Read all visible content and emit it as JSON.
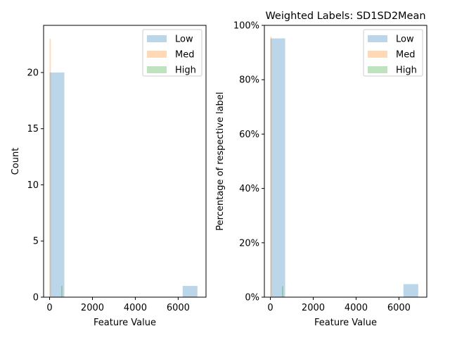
{
  "chart_data": [
    {
      "type": "histogram",
      "title": "",
      "xlabel": "Feature Value",
      "ylabel": "Count",
      "xlim": [
        -280,
        7300
      ],
      "ylim": [
        0,
        24.2
      ],
      "x_ticks": [
        0,
        2000,
        4000,
        6000
      ],
      "x_tick_labels": [
        "0",
        "2000",
        "4000",
        "6000"
      ],
      "y_ticks": [
        0,
        5,
        10,
        15,
        20
      ],
      "y_tick_labels": [
        "0",
        "5",
        "10",
        "15",
        "20"
      ],
      "legend_position": "top-right",
      "grid": false,
      "series": [
        {
          "name": "Low",
          "color": "#1f77b4",
          "bins": [
            {
              "x0": 0,
              "x1": 690,
              "value": 20
            },
            {
              "x0": 6210,
              "x1": 6900,
              "value": 1
            }
          ]
        },
        {
          "name": "Med",
          "color": "#ff7f0e",
          "bins": [
            {
              "x0": 0,
              "x1": 60,
              "value": 23
            }
          ]
        },
        {
          "name": "High",
          "color": "#2ca02c",
          "bins": [
            {
              "x0": 540,
              "x1": 600,
              "value": 1
            }
          ]
        }
      ]
    },
    {
      "type": "histogram",
      "title": "Weighted Labels: SD1SD2Mean",
      "xlabel": "Feature Value",
      "ylabel": "Percentage of respective label",
      "xlim": [
        -280,
        7300
      ],
      "ylim": [
        0,
        1.0
      ],
      "x_ticks": [
        0,
        2000,
        4000,
        6000
      ],
      "x_tick_labels": [
        "0",
        "2000",
        "4000",
        "6000"
      ],
      "y_ticks": [
        0,
        0.2,
        0.4,
        0.6,
        0.8,
        1.0
      ],
      "y_tick_labels": [
        "0%",
        "20%",
        "40%",
        "60%",
        "80%",
        "100%"
      ],
      "legend_position": "top-right",
      "grid": false,
      "series": [
        {
          "name": "Low",
          "color": "#1f77b4",
          "bins": [
            {
              "x0": 0,
              "x1": 690,
              "value": 0.952
            },
            {
              "x0": 6210,
              "x1": 6900,
              "value": 0.048
            }
          ]
        },
        {
          "name": "Med",
          "color": "#ff7f0e",
          "bins": [
            {
              "x0": 0,
              "x1": 60,
              "value": 0.958
            }
          ]
        },
        {
          "name": "High",
          "color": "#2ca02c",
          "bins": [
            {
              "x0": 540,
              "x1": 600,
              "value": 0.04
            }
          ]
        }
      ]
    }
  ]
}
